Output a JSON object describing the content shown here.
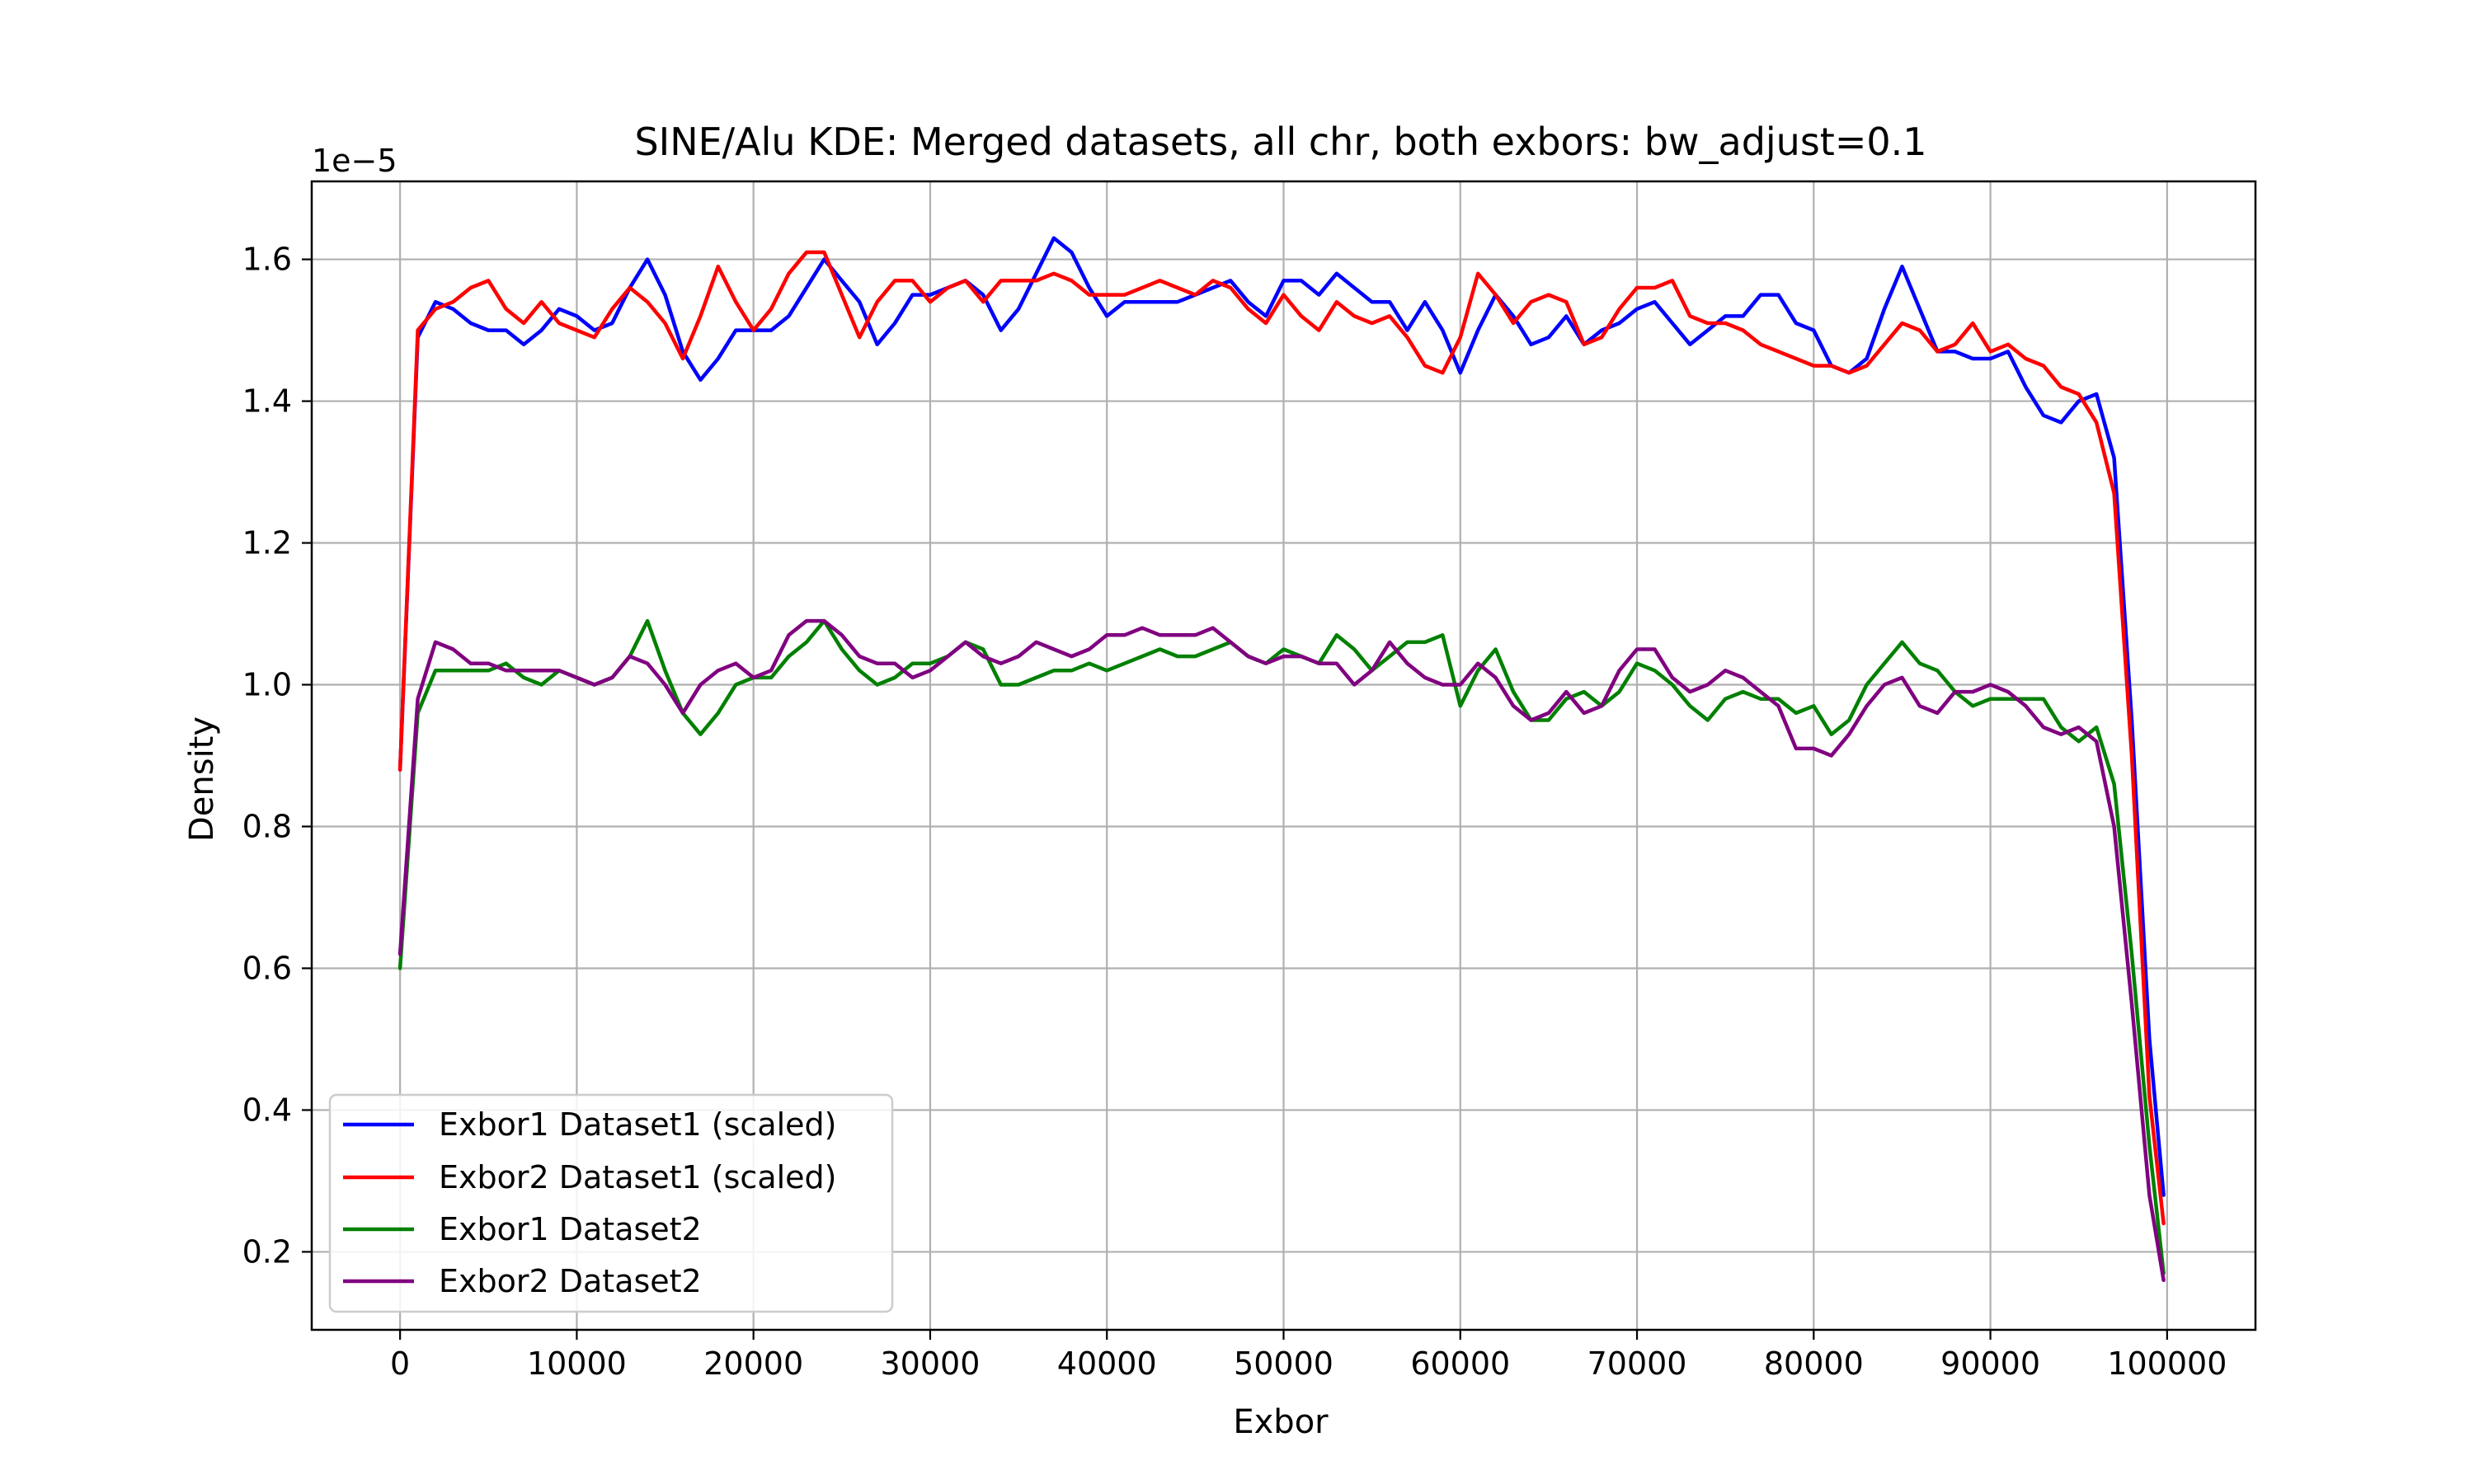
{
  "chart_data": {
    "type": "line",
    "title": "SINE/Alu KDE: Merged datasets, all chr, both exbors: bw_adjust=0.1",
    "xlabel": "Exbor",
    "ylabel": "Density",
    "y_offset_label": "1e−5",
    "xlim": [
      -5000,
      105000
    ],
    "ylim": [
      0.09,
      1.71
    ],
    "grid": true,
    "legend_position": "lower-left",
    "x_ticks": [
      0,
      10000,
      20000,
      30000,
      40000,
      50000,
      60000,
      70000,
      80000,
      90000,
      100000
    ],
    "x_tick_labels": [
      "0",
      "10000",
      "20000",
      "30000",
      "40000",
      "50000",
      "60000",
      "70000",
      "80000",
      "90000",
      "100000"
    ],
    "y_ticks": [
      0.2,
      0.4,
      0.6,
      0.8,
      1.0,
      1.2,
      1.4,
      1.6
    ],
    "y_tick_labels": [
      "0.2",
      "0.4",
      "0.6",
      "0.8",
      "1.0",
      "1.2",
      "1.4",
      "1.6"
    ],
    "x": [
      0,
      1000,
      2000,
      3000,
      4000,
      5000,
      6000,
      7000,
      8000,
      9000,
      10000,
      11000,
      12000,
      13000,
      14000,
      15000,
      16000,
      17000,
      18000,
      19000,
      20000,
      21000,
      22000,
      23000,
      24000,
      25000,
      26000,
      27000,
      28000,
      29000,
      30000,
      31000,
      32000,
      33000,
      34000,
      35000,
      36000,
      37000,
      38000,
      39000,
      40000,
      41000,
      42000,
      43000,
      44000,
      45000,
      46000,
      47000,
      48000,
      49000,
      50000,
      51000,
      52000,
      53000,
      54000,
      55000,
      56000,
      57000,
      58000,
      59000,
      60000,
      61000,
      62000,
      63000,
      64000,
      65000,
      66000,
      67000,
      68000,
      69000,
      70000,
      71000,
      72000,
      73000,
      74000,
      75000,
      76000,
      77000,
      78000,
      79000,
      80000,
      81000,
      82000,
      83000,
      84000,
      85000,
      86000,
      87000,
      88000,
      89000,
      90000,
      91000,
      92000,
      93000,
      94000,
      95000,
      96000,
      97000,
      98000,
      99000,
      99800
    ],
    "series": [
      {
        "name": "Exbor1 Dataset1 (scaled)",
        "color": "#0000ff",
        "values": [
          0.88,
          1.49,
          1.54,
          1.53,
          1.51,
          1.5,
          1.5,
          1.48,
          1.5,
          1.53,
          1.52,
          1.5,
          1.51,
          1.56,
          1.6,
          1.55,
          1.47,
          1.43,
          1.46,
          1.5,
          1.5,
          1.5,
          1.52,
          1.56,
          1.6,
          1.57,
          1.54,
          1.48,
          1.51,
          1.55,
          1.55,
          1.56,
          1.57,
          1.55,
          1.5,
          1.53,
          1.58,
          1.63,
          1.61,
          1.56,
          1.52,
          1.54,
          1.54,
          1.54,
          1.54,
          1.55,
          1.56,
          1.57,
          1.54,
          1.52,
          1.57,
          1.57,
          1.55,
          1.58,
          1.56,
          1.54,
          1.54,
          1.5,
          1.54,
          1.5,
          1.44,
          1.5,
          1.55,
          1.52,
          1.48,
          1.49,
          1.52,
          1.48,
          1.5,
          1.51,
          1.53,
          1.54,
          1.51,
          1.48,
          1.5,
          1.52,
          1.52,
          1.55,
          1.55,
          1.51,
          1.5,
          1.45,
          1.44,
          1.46,
          1.53,
          1.59,
          1.53,
          1.47,
          1.47,
          1.46,
          1.46,
          1.47,
          1.42,
          1.38,
          1.37,
          1.4,
          1.41,
          1.32,
          0.95,
          0.5,
          0.28
        ]
      },
      {
        "name": "Exbor2 Dataset1 (scaled)",
        "color": "#ff0000",
        "values": [
          0.88,
          1.5,
          1.53,
          1.54,
          1.56,
          1.57,
          1.53,
          1.51,
          1.54,
          1.51,
          1.5,
          1.49,
          1.53,
          1.56,
          1.54,
          1.51,
          1.46,
          1.52,
          1.59,
          1.54,
          1.5,
          1.53,
          1.58,
          1.61,
          1.61,
          1.55,
          1.49,
          1.54,
          1.57,
          1.57,
          1.54,
          1.56,
          1.57,
          1.54,
          1.57,
          1.57,
          1.57,
          1.58,
          1.57,
          1.55,
          1.55,
          1.55,
          1.56,
          1.57,
          1.56,
          1.55,
          1.57,
          1.56,
          1.53,
          1.51,
          1.55,
          1.52,
          1.5,
          1.54,
          1.52,
          1.51,
          1.52,
          1.49,
          1.45,
          1.44,
          1.49,
          1.58,
          1.55,
          1.51,
          1.54,
          1.55,
          1.54,
          1.48,
          1.49,
          1.53,
          1.56,
          1.56,
          1.57,
          1.52,
          1.51,
          1.51,
          1.5,
          1.48,
          1.47,
          1.46,
          1.45,
          1.45,
          1.44,
          1.45,
          1.48,
          1.51,
          1.5,
          1.47,
          1.48,
          1.51,
          1.47,
          1.48,
          1.46,
          1.45,
          1.42,
          1.41,
          1.37,
          1.27,
          0.9,
          0.42,
          0.24
        ]
      },
      {
        "name": "Exbor1 Dataset2",
        "color": "#008000",
        "values": [
          0.6,
          0.96,
          1.02,
          1.02,
          1.02,
          1.02,
          1.03,
          1.01,
          1.0,
          1.02,
          1.01,
          1.0,
          1.01,
          1.04,
          1.09,
          1.02,
          0.96,
          0.93,
          0.96,
          1.0,
          1.01,
          1.01,
          1.04,
          1.06,
          1.09,
          1.05,
          1.02,
          1.0,
          1.01,
          1.03,
          1.03,
          1.04,
          1.06,
          1.05,
          1.0,
          1.0,
          1.01,
          1.02,
          1.02,
          1.03,
          1.02,
          1.03,
          1.04,
          1.05,
          1.04,
          1.04,
          1.05,
          1.06,
          1.04,
          1.03,
          1.05,
          1.04,
          1.03,
          1.07,
          1.05,
          1.02,
          1.04,
          1.06,
          1.06,
          1.07,
          0.97,
          1.02,
          1.05,
          0.99,
          0.95,
          0.95,
          0.98,
          0.99,
          0.97,
          0.99,
          1.03,
          1.02,
          1.0,
          0.97,
          0.95,
          0.98,
          0.99,
          0.98,
          0.98,
          0.96,
          0.97,
          0.93,
          0.95,
          1.0,
          1.03,
          1.06,
          1.03,
          1.02,
          0.99,
          0.97,
          0.98,
          0.98,
          0.98,
          0.98,
          0.94,
          0.92,
          0.94,
          0.86,
          0.62,
          0.35,
          0.17
        ]
      },
      {
        "name": "Exbor2 Dataset2",
        "color": "#800080",
        "values": [
          0.62,
          0.98,
          1.06,
          1.05,
          1.03,
          1.03,
          1.02,
          1.02,
          1.02,
          1.02,
          1.01,
          1.0,
          1.01,
          1.04,
          1.03,
          1.0,
          0.96,
          1.0,
          1.02,
          1.03,
          1.01,
          1.02,
          1.07,
          1.09,
          1.09,
          1.07,
          1.04,
          1.03,
          1.03,
          1.01,
          1.02,
          1.04,
          1.06,
          1.04,
          1.03,
          1.04,
          1.06,
          1.05,
          1.04,
          1.05,
          1.07,
          1.07,
          1.08,
          1.07,
          1.07,
          1.07,
          1.08,
          1.06,
          1.04,
          1.03,
          1.04,
          1.04,
          1.03,
          1.03,
          1.0,
          1.02,
          1.06,
          1.03,
          1.01,
          1.0,
          1.0,
          1.03,
          1.01,
          0.97,
          0.95,
          0.96,
          0.99,
          0.96,
          0.97,
          1.02,
          1.05,
          1.05,
          1.01,
          0.99,
          1.0,
          1.02,
          1.01,
          0.99,
          0.97,
          0.91,
          0.91,
          0.9,
          0.93,
          0.97,
          1.0,
          1.01,
          0.97,
          0.96,
          0.99,
          0.99,
          1.0,
          0.99,
          0.97,
          0.94,
          0.93,
          0.94,
          0.92,
          0.8,
          0.55,
          0.28,
          0.16
        ]
      }
    ]
  }
}
